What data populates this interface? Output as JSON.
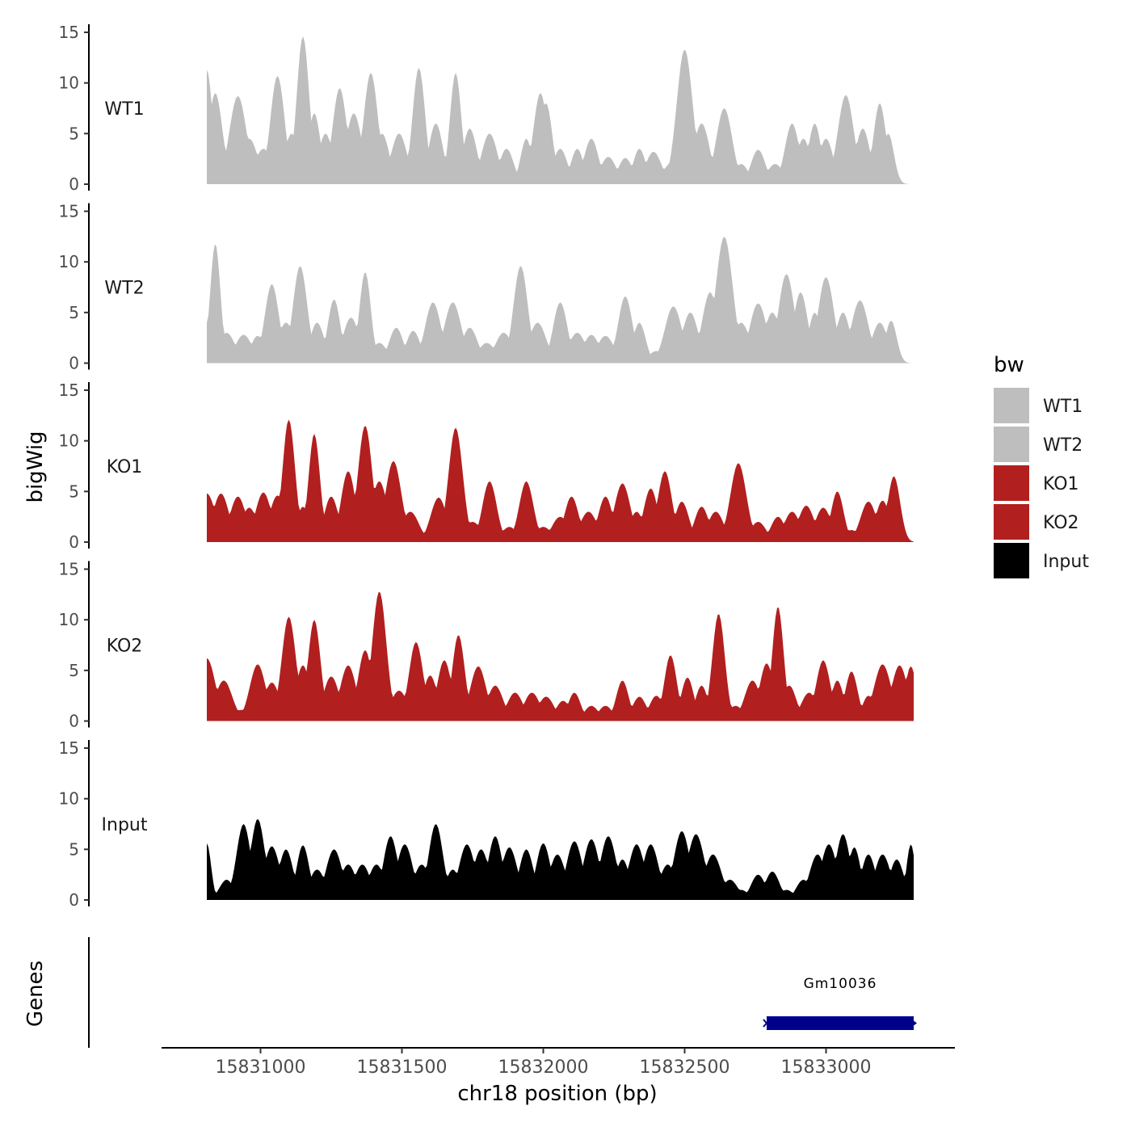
{
  "chart_data": {
    "type": "area",
    "title": "",
    "ylabel": "bigWig",
    "xlabel": "chr18 position (bp)",
    "xlim": [
      15830650,
      15833450
    ],
    "data_range": [
      15830810,
      15833310
    ],
    "ylim": [
      0,
      15
    ],
    "yticks": [
      0,
      5,
      10,
      15
    ],
    "xticks": [
      15831000,
      15831500,
      15832000,
      15832500,
      15833000
    ],
    "xtick_labels": [
      "15831000",
      "15831500",
      "15832000",
      "15832500",
      "15833000"
    ],
    "legend": {
      "title": "bw",
      "position": "right",
      "entries": [
        {
          "label": "WT1",
          "color": "#bebebe"
        },
        {
          "label": "WT2",
          "color": "#bebebe"
        },
        {
          "label": "KO1",
          "color": "#b21f1f"
        },
        {
          "label": "KO2",
          "color": "#b21f1f"
        },
        {
          "label": "Input",
          "color": "#000000"
        }
      ]
    },
    "series": [
      {
        "name": "WT1",
        "color": "#bebebe",
        "peaks": [
          [
            15830810,
            11.3,
            20
          ],
          [
            15830840,
            9,
            25
          ],
          [
            15830870,
            1.6,
            22
          ],
          [
            15830920,
            8.7,
            30
          ],
          [
            15830960,
            4.5,
            30
          ],
          [
            15831010,
            3.5,
            30
          ],
          [
            15831060,
            10.7,
            25
          ],
          [
            15831110,
            5,
            25
          ],
          [
            15831150,
            14.6,
            22
          ],
          [
            15831190,
            7,
            22
          ],
          [
            15831230,
            5,
            25
          ],
          [
            15831280,
            9.5,
            25
          ],
          [
            15831330,
            7,
            28
          ],
          [
            15831390,
            11,
            25
          ],
          [
            15831430,
            5,
            25
          ],
          [
            15831490,
            5,
            28
          ],
          [
            15831560,
            11.5,
            22
          ],
          [
            15831620,
            6,
            25
          ],
          [
            15831690,
            11,
            20
          ],
          [
            15831740,
            5.5,
            25
          ],
          [
            15831810,
            5,
            28
          ],
          [
            15831870,
            3.5,
            25
          ],
          [
            15831940,
            4.5,
            20
          ],
          [
            15831990,
            9,
            25
          ],
          [
            15832010,
            8,
            22
          ],
          [
            15832060,
            3.5,
            25
          ],
          [
            15832120,
            3.5,
            22
          ],
          [
            15832170,
            4.5,
            25
          ],
          [
            15832230,
            2.7,
            28
          ],
          [
            15832290,
            2.6,
            25
          ],
          [
            15832340,
            3.5,
            22
          ],
          [
            15832390,
            3.2,
            28
          ],
          [
            15832450,
            2,
            28
          ],
          [
            15832500,
            13.3,
            28
          ],
          [
            15832560,
            6,
            28
          ],
          [
            15832640,
            7.5,
            28
          ],
          [
            15832700,
            2,
            25
          ],
          [
            15832760,
            3.4,
            25
          ],
          [
            15832820,
            2,
            28
          ],
          [
            15832880,
            6,
            25
          ],
          [
            15832920,
            4.5,
            25
          ],
          [
            15832960,
            6,
            22
          ],
          [
            15833000,
            4.5,
            25
          ],
          [
            15833070,
            8.8,
            28
          ],
          [
            15833130,
            5.5,
            25
          ],
          [
            15833190,
            8,
            22
          ],
          [
            15833220,
            5,
            20
          ]
        ]
      },
      {
        "name": "WT2",
        "color": "#bebebe",
        "peaks": [
          [
            15830810,
            4,
            20
          ],
          [
            15830840,
            11.8,
            18
          ],
          [
            15830880,
            3,
            30
          ],
          [
            15830940,
            2.8,
            30
          ],
          [
            15830990,
            2.7,
            25
          ],
          [
            15831040,
            7.8,
            25
          ],
          [
            15831090,
            4,
            28
          ],
          [
            15831140,
            9.6,
            25
          ],
          [
            15831200,
            4,
            25
          ],
          [
            15831260,
            6.3,
            22
          ],
          [
            15831320,
            4.5,
            28
          ],
          [
            15831370,
            9,
            20
          ],
          [
            15831420,
            2,
            28
          ],
          [
            15831480,
            3.5,
            25
          ],
          [
            15831540,
            3.2,
            25
          ],
          [
            15831610,
            6,
            28
          ],
          [
            15831680,
            6,
            30
          ],
          [
            15831740,
            3.5,
            28
          ],
          [
            15831800,
            2,
            30
          ],
          [
            15831860,
            3,
            30
          ],
          [
            15831920,
            9.6,
            25
          ],
          [
            15831980,
            4,
            30
          ],
          [
            15832060,
            6,
            25
          ],
          [
            15832120,
            3,
            30
          ],
          [
            15832170,
            2.8,
            28
          ],
          [
            15832220,
            2.7,
            30
          ],
          [
            15832290,
            6.6,
            25
          ],
          [
            15832340,
            4,
            22
          ],
          [
            15832400,
            1.2,
            28
          ],
          [
            15832460,
            5.6,
            30
          ],
          [
            15832520,
            5,
            28
          ],
          [
            15832590,
            7,
            28
          ],
          [
            15832640,
            12.5,
            30
          ],
          [
            15832700,
            4,
            30
          ],
          [
            15832760,
            5.9,
            30
          ],
          [
            15832810,
            5,
            28
          ],
          [
            15832860,
            8.8,
            28
          ],
          [
            15832910,
            7,
            25
          ],
          [
            15832960,
            5,
            22
          ],
          [
            15833000,
            8.5,
            28
          ],
          [
            15833060,
            5,
            25
          ],
          [
            15833120,
            6.2,
            30
          ],
          [
            15833190,
            4,
            28
          ],
          [
            15833230,
            4.2,
            20
          ]
        ]
      },
      {
        "name": "KO1",
        "color": "#b21f1f",
        "peaks": [
          [
            15830810,
            4.8,
            30
          ],
          [
            15830860,
            4.8,
            28
          ],
          [
            15830920,
            4.5,
            28
          ],
          [
            15830960,
            3.4,
            28
          ],
          [
            15831010,
            4.9,
            28
          ],
          [
            15831060,
            4.6,
            28
          ],
          [
            15831100,
            12.1,
            22
          ],
          [
            15831150,
            3.5,
            22
          ],
          [
            15831190,
            10.7,
            20
          ],
          [
            15831250,
            4.5,
            25
          ],
          [
            15831310,
            7,
            25
          ],
          [
            15831370,
            11.5,
            25
          ],
          [
            15831420,
            6,
            28
          ],
          [
            15831470,
            8,
            28
          ],
          [
            15831530,
            3,
            30
          ],
          [
            15831590,
            1,
            28
          ],
          [
            15831630,
            4.4,
            28
          ],
          [
            15831690,
            11.3,
            25
          ],
          [
            15831750,
            2,
            30
          ],
          [
            15831810,
            6,
            25
          ],
          [
            15831880,
            1.5,
            28
          ],
          [
            15831940,
            6,
            25
          ],
          [
            15832000,
            1.5,
            30
          ],
          [
            15832060,
            2.5,
            30
          ],
          [
            15832100,
            4.5,
            25
          ],
          [
            15832160,
            3,
            30
          ],
          [
            15832220,
            4.5,
            25
          ],
          [
            15832280,
            5.8,
            28
          ],
          [
            15832330,
            3,
            25
          ],
          [
            15832380,
            5.3,
            25
          ],
          [
            15832430,
            7,
            25
          ],
          [
            15832490,
            4,
            25
          ],
          [
            15832560,
            3.5,
            25
          ],
          [
            15832610,
            3,
            28
          ],
          [
            15832690,
            7.8,
            28
          ],
          [
            15832760,
            2,
            28
          ],
          [
            15832830,
            2.5,
            25
          ],
          [
            15832880,
            3,
            28
          ],
          [
            15832930,
            3.6,
            28
          ],
          [
            15832990,
            3.4,
            28
          ],
          [
            15833040,
            5,
            22
          ],
          [
            15833090,
            1.2,
            25
          ],
          [
            15833150,
            4,
            28
          ],
          [
            15833200,
            4.1,
            25
          ],
          [
            15833240,
            6.5,
            22
          ]
        ]
      },
      {
        "name": "KO2",
        "color": "#b21f1f",
        "peaks": [
          [
            15830810,
            6.2,
            30
          ],
          [
            15830870,
            4,
            30
          ],
          [
            15830930,
            1.1,
            25
          ],
          [
            15830990,
            5.6,
            28
          ],
          [
            15831040,
            3.8,
            28
          ],
          [
            15831100,
            10.3,
            25
          ],
          [
            15831150,
            5.5,
            25
          ],
          [
            15831190,
            10,
            22
          ],
          [
            15831250,
            4.4,
            28
          ],
          [
            15831310,
            5.5,
            28
          ],
          [
            15831370,
            7,
            25
          ],
          [
            15831420,
            12.8,
            25
          ],
          [
            15831490,
            3,
            30
          ],
          [
            15831550,
            7.8,
            25
          ],
          [
            15831600,
            4.5,
            25
          ],
          [
            15831650,
            6,
            25
          ],
          [
            15831700,
            8.5,
            22
          ],
          [
            15831770,
            5.4,
            28
          ],
          [
            15831830,
            3.5,
            28
          ],
          [
            15831900,
            2.8,
            28
          ],
          [
            15831960,
            2.8,
            28
          ],
          [
            15832010,
            2.4,
            28
          ],
          [
            15832070,
            2,
            25
          ],
          [
            15832110,
            2.8,
            22
          ],
          [
            15832170,
            1.5,
            25
          ],
          [
            15832220,
            1.5,
            25
          ],
          [
            15832280,
            4,
            22
          ],
          [
            15832340,
            2.4,
            25
          ],
          [
            15832400,
            2.5,
            25
          ],
          [
            15832450,
            6.5,
            22
          ],
          [
            15832510,
            4.3,
            22
          ],
          [
            15832560,
            3.5,
            22
          ],
          [
            15832620,
            10.6,
            22
          ],
          [
            15832680,
            1.5,
            28
          ],
          [
            15832740,
            4,
            28
          ],
          [
            15832790,
            5.7,
            25
          ],
          [
            15832830,
            11.3,
            20
          ],
          [
            15832870,
            3.5,
            25
          ],
          [
            15832940,
            2.8,
            28
          ],
          [
            15832990,
            6,
            25
          ],
          [
            15833040,
            4,
            22
          ],
          [
            15833090,
            4.9,
            22
          ],
          [
            15833150,
            2.5,
            22
          ],
          [
            15833200,
            5.6,
            30
          ],
          [
            15833260,
            5.5,
            28
          ],
          [
            15833300,
            5.4,
            20
          ]
        ]
      },
      {
        "name": "Input",
        "color": "#000000",
        "peaks": [
          [
            15830810,
            5.6,
            15
          ],
          [
            15830880,
            2,
            25
          ],
          [
            15830940,
            7.5,
            25
          ],
          [
            15830990,
            8,
            25
          ],
          [
            15831040,
            5.3,
            28
          ],
          [
            15831090,
            5,
            25
          ],
          [
            15831150,
            5.4,
            22
          ],
          [
            15831200,
            3,
            28
          ],
          [
            15831260,
            5,
            28
          ],
          [
            15831310,
            3.5,
            28
          ],
          [
            15831360,
            3.5,
            28
          ],
          [
            15831410,
            3.5,
            28
          ],
          [
            15831460,
            6.3,
            25
          ],
          [
            15831510,
            5.5,
            28
          ],
          [
            15831570,
            3.5,
            28
          ],
          [
            15831620,
            7.5,
            25
          ],
          [
            15831680,
            3,
            25
          ],
          [
            15831730,
            5.5,
            28
          ],
          [
            15831780,
            5,
            28
          ],
          [
            15831830,
            6.3,
            25
          ],
          [
            15831880,
            5.2,
            28
          ],
          [
            15831940,
            5,
            25
          ],
          [
            15832000,
            5.6,
            25
          ],
          [
            15832050,
            4.5,
            28
          ],
          [
            15832110,
            5.8,
            28
          ],
          [
            15832170,
            6,
            28
          ],
          [
            15832230,
            6.3,
            28
          ],
          [
            15832280,
            4,
            25
          ],
          [
            15832330,
            5.5,
            28
          ],
          [
            15832380,
            5.5,
            28
          ],
          [
            15832440,
            3.5,
            28
          ],
          [
            15832490,
            6.8,
            28
          ],
          [
            15832540,
            6.5,
            30
          ],
          [
            15832600,
            4.5,
            30
          ],
          [
            15832660,
            2,
            28
          ],
          [
            15832700,
            1,
            25
          ],
          [
            15832760,
            2.5,
            25
          ],
          [
            15832810,
            2.8,
            25
          ],
          [
            15832860,
            1,
            25
          ],
          [
            15832920,
            2,
            25
          ],
          [
            15832970,
            4.5,
            28
          ],
          [
            15833010,
            5.5,
            28
          ],
          [
            15833060,
            6.5,
            25
          ],
          [
            15833100,
            5.2,
            22
          ],
          [
            15833150,
            4.5,
            25
          ],
          [
            15833200,
            4.5,
            28
          ],
          [
            15833250,
            4,
            25
          ],
          [
            15833300,
            5.5,
            15
          ]
        ]
      }
    ],
    "genes": {
      "label": "Genes",
      "items": [
        {
          "name": "Gm10036",
          "start": 15832790,
          "end": 15833310,
          "color": "#00008b"
        }
      ]
    }
  }
}
